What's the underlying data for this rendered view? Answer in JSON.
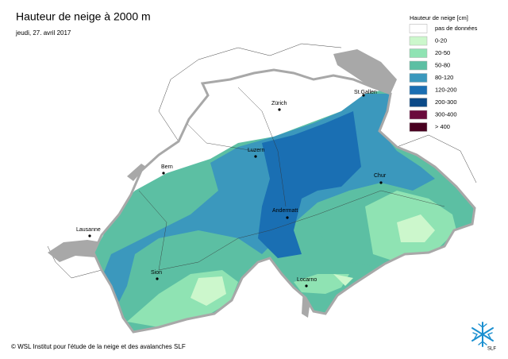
{
  "header": {
    "title": "Hauteur de neige à 2000 m",
    "date": "jeudi, 27. avril 2017"
  },
  "legend": {
    "title": "Hauteur de neige [cm]",
    "items": [
      {
        "label": "pas de données",
        "color": "#ffffff"
      },
      {
        "label": "0-20",
        "color": "#ccf7cc"
      },
      {
        "label": "20-50",
        "color": "#8fe3b3"
      },
      {
        "label": "50-80",
        "color": "#5cbfa3"
      },
      {
        "label": "80-120",
        "color": "#3b98bd"
      },
      {
        "label": "120-200",
        "color": "#1a6fb3"
      },
      {
        "label": "200-300",
        "color": "#0b4a88"
      },
      {
        "label": "300-400",
        "color": "#6a0a3c"
      },
      {
        "label": "> 400",
        "color": "#480020"
      }
    ]
  },
  "cities": [
    "Zürich",
    "St.Gallen",
    "Luzern",
    "Bern",
    "Chur",
    "Andermatt",
    "Lausanne",
    "Sion",
    "Locarno"
  ],
  "footer": {
    "credit": "© WSL Institut pour l'étude de la neige et des avalanches SLF"
  },
  "logo": {
    "text": "SLF"
  }
}
